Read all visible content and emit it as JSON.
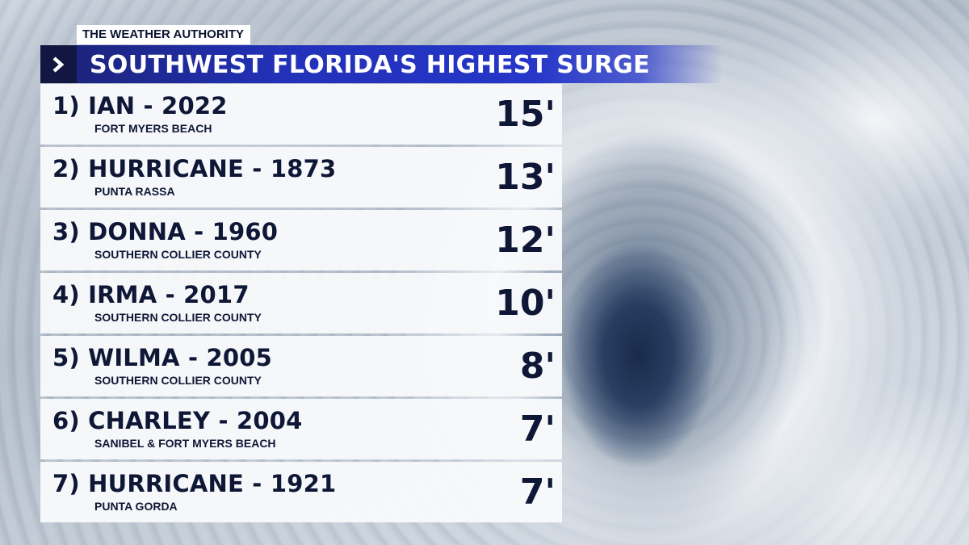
{
  "header": {
    "brand": "THE WEATHER AUTHORITY",
    "title": "SOUTHWEST FLORIDA'S HIGHEST SURGE",
    "icon": "chevron-right-icon"
  },
  "rows": [
    {
      "title": "1) IAN - 2022",
      "location": "FORT MYERS BEACH",
      "surge": "15'"
    },
    {
      "title": "2) HURRICANE - 1873",
      "location": "PUNTA RASSA",
      "surge": "13'"
    },
    {
      "title": "3) DONNA - 1960",
      "location": "SOUTHERN COLLIER COUNTY",
      "surge": "12'"
    },
    {
      "title": "4) IRMA - 2017",
      "location": "SOUTHERN COLLIER COUNTY",
      "surge": "10'"
    },
    {
      "title": "5) WILMA - 2005",
      "location": "SOUTHERN COLLIER COUNTY",
      "surge": "8'"
    },
    {
      "title": "6) CHARLEY - 2004",
      "location": "SANIBEL & FORT MYERS BEACH",
      "surge": "7'"
    },
    {
      "title": "7) HURRICANE - 1921",
      "location": "PUNTA GORDA",
      "surge": "7'"
    }
  ],
  "colors": {
    "title_bar": "#2536c9",
    "chevron_box": "#121742",
    "text": "#0f1736",
    "row_bg": "#f8f9fb"
  }
}
